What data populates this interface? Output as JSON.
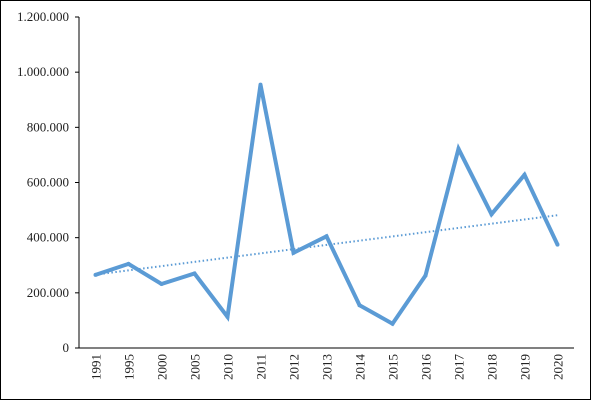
{
  "chart_data": {
    "type": "line",
    "title": "",
    "xlabel": "",
    "ylabel": "",
    "categories": [
      "1991",
      "1995",
      "2000",
      "2005",
      "2010",
      "2011",
      "2012",
      "2013",
      "2014",
      "2015",
      "2016",
      "2017",
      "2018",
      "2019",
      "2020"
    ],
    "series": [
      {
        "values": [
          265000,
          305000,
          232000,
          270000,
          113000,
          955000,
          345000,
          405000,
          155000,
          88000,
          263000,
          722000,
          485000,
          628000,
          375000
        ]
      }
    ],
    "trendline": {
      "type": "linear",
      "style": "dotted"
    },
    "ylim": [
      0,
      1200000
    ],
    "yticks": [
      0,
      200000,
      400000,
      600000,
      800000,
      1000000,
      1200000
    ],
    "ytick_labels": [
      "0",
      "200.000",
      "400.000",
      "600.000",
      "800.000",
      "1.000.000",
      "1.200.000"
    ],
    "grid": false,
    "legend": "none",
    "colors": {
      "line": "#5b9bd5",
      "trend": "#5b9bd5",
      "axis": "#000000"
    }
  }
}
